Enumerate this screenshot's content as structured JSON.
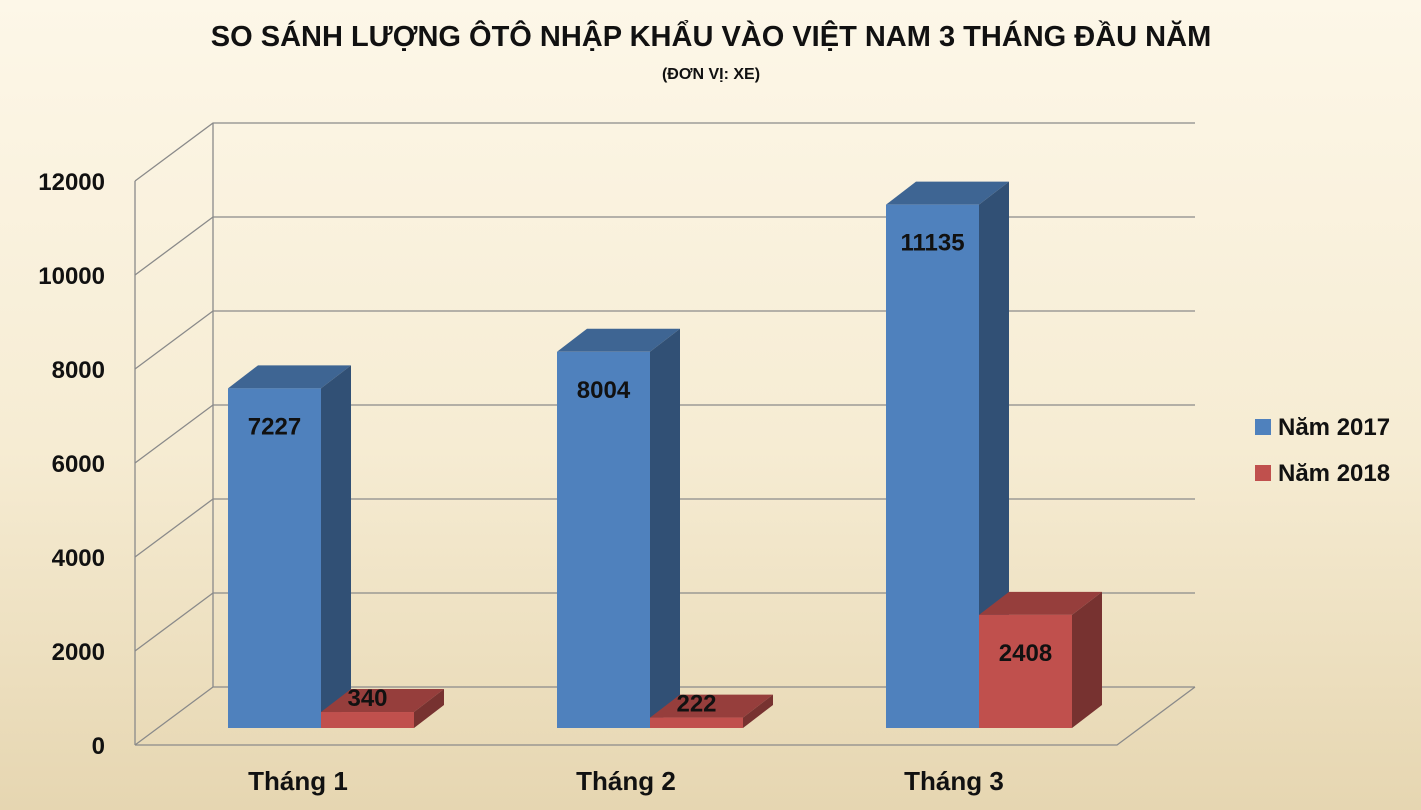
{
  "chart_data": {
    "type": "bar",
    "title": "SO SÁNH LƯỢNG ÔTÔ NHẬP KHẨU VÀO VIỆT NAM 3 THÁNG ĐẦU NĂM",
    "subtitle": "(ĐƠN VỊ: XE)",
    "categories": [
      "Tháng 1",
      "Tháng 2",
      "Tháng 3"
    ],
    "series": [
      {
        "name": "Năm 2017",
        "values": [
          7227,
          8004,
          11135
        ],
        "color": "#4f81bd"
      },
      {
        "name": "Năm 2018",
        "values": [
          340,
          222,
          2408
        ],
        "color": "#c0504d"
      }
    ],
    "y_ticks": [
      "0",
      "2000",
      "4000",
      "6000",
      "8000",
      "10000",
      "12000"
    ],
    "ylim": [
      0,
      12000
    ],
    "grid": true,
    "legend_position": "right",
    "style": "3d-column"
  }
}
